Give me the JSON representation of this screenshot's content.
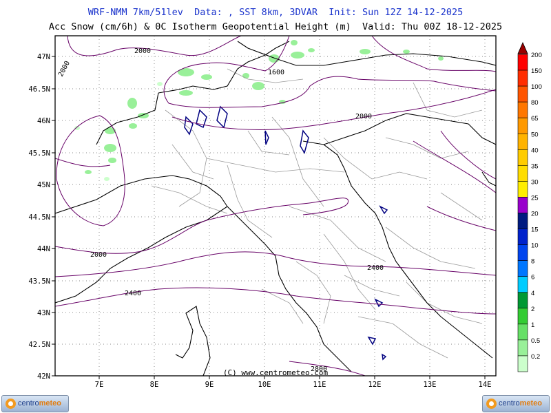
{
  "header": {
    "line1": "WRF-NMM 7km/51lev  Data: , SST 8km, 3DVAR  Init: Sun 12Z 14-12-2025",
    "line2": "Acc Snow (cm/6h) & 0C Isotherm Geopotential Height (m)  Valid: Thu 00Z 18-12-2025"
  },
  "map": {
    "lon_labels": [
      "7E",
      "8E",
      "9E",
      "10E",
      "11E",
      "12E",
      "13E",
      "14E"
    ],
    "lat_labels": [
      "47N",
      "46.5N",
      "46N",
      "45.5N",
      "45N",
      "44.5N",
      "44N",
      "43.5N",
      "43N",
      "42.5N",
      "42N"
    ],
    "contour_labels": [
      "2000",
      "1600",
      "2000",
      "2000",
      "2400",
      "2400",
      "2800"
    ],
    "side_contour_label": "2000",
    "copyright": "(C) www.centrometeo.com"
  },
  "legend": {
    "values": [
      "200",
      "150",
      "100",
      "80",
      "65",
      "50",
      "40",
      "35",
      "30",
      "25",
      "20",
      "15",
      "10",
      "8",
      "6",
      "4",
      "2",
      "1",
      "0.5",
      "0.2"
    ],
    "colors": [
      "#ff0000",
      "#ff2d00",
      "#ff5500",
      "#ff7700",
      "#ff9900",
      "#ffb300",
      "#ffcc00",
      "#ffdd00",
      "#ffee00",
      "#9900cc",
      "#001a80",
      "#0022cc",
      "#0044ee",
      "#0077ff",
      "#00ccff",
      "#009933",
      "#33cc33",
      "#66e066",
      "#99f099",
      "#ccffcc"
    ]
  },
  "colors": {
    "snow_light": "#99f099",
    "snow_lighter": "#ccffcc",
    "contour": "#660066",
    "coast": "#000000",
    "border": "#999999",
    "lakes": "#000080"
  },
  "logos": {
    "word1": "centro",
    "word2": "meteo"
  }
}
